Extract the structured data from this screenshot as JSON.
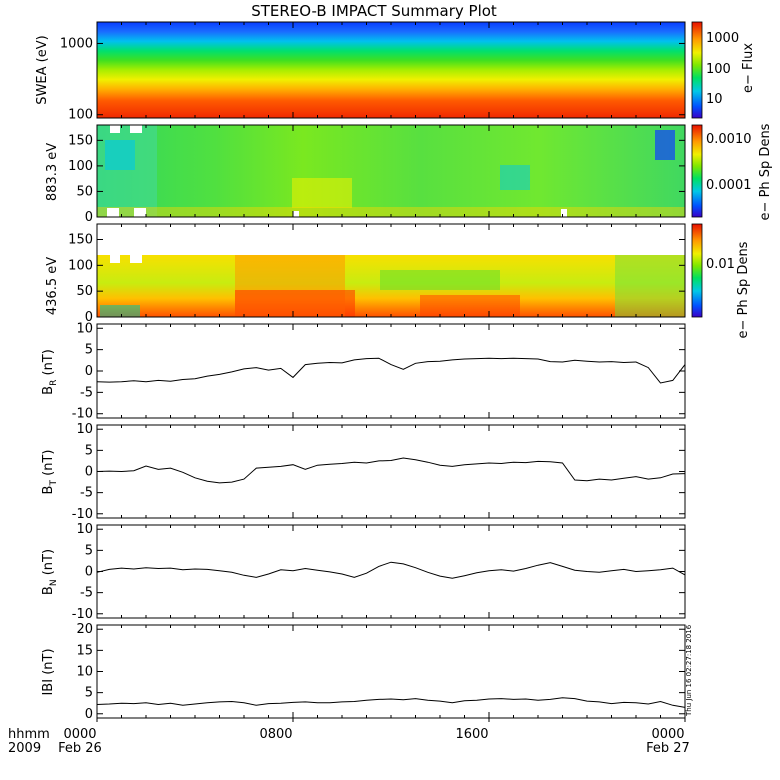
{
  "title": "STEREO-B IMPACT Summary Plot",
  "x_axis": {
    "ticks": [
      "0000",
      "0800",
      "1600",
      "0000"
    ],
    "tick_hours": [
      0,
      8,
      16,
      24
    ],
    "dates": [
      "Feb 26",
      "Feb 27"
    ],
    "corner_top": "hhmm",
    "corner_bottom": "2009"
  },
  "footer_stamp": "Thu Jun 16 02:27:18 2016",
  "chart_data": [
    {
      "type": "heatmap",
      "ylabel": "SWEA (eV)",
      "y_scale": "log",
      "ylim": [
        90,
        2000
      ],
      "yticks": [
        100,
        1000
      ],
      "yticklabels": [
        "100",
        "1000"
      ],
      "colorbar": {
        "label": "e− Flux",
        "ticklabels": [
          "1000",
          "100",
          "10"
        ]
      }
    },
    {
      "type": "heatmap",
      "ylabel": "883.3 eV",
      "ylim": [
        0,
        180
      ],
      "yticks": [
        0,
        50,
        100,
        150
      ],
      "colorbar": {
        "label": "e− Ph Sp Dens",
        "ticklabels": [
          "0.0010",
          "0.0001"
        ]
      }
    },
    {
      "type": "heatmap",
      "ylabel": "436.5 eV",
      "ylim": [
        0,
        180
      ],
      "yticks": [
        0,
        50,
        100,
        150
      ],
      "colorbar": {
        "label": "e− Ph Sp Dens",
        "ticklabels": [
          "0.01"
        ]
      }
    },
    {
      "type": "line",
      "ylabel_main": "B",
      "ylabel_sub": "R",
      "ylabel_unit": " (nT)",
      "ylim": [
        -11,
        11
      ],
      "yticks": [
        -10,
        -5,
        0,
        5,
        10
      ],
      "x_hours": [
        0,
        0.5,
        1,
        1.5,
        2,
        2.5,
        3,
        3.5,
        4,
        4.5,
        5,
        5.5,
        6,
        6.5,
        7,
        7.5,
        8,
        8.5,
        9,
        9.5,
        10,
        10.5,
        11,
        11.5,
        12,
        12.5,
        13,
        13.5,
        14,
        14.5,
        15,
        15.5,
        16,
        16.5,
        17,
        17.5,
        18,
        18.5,
        19,
        19.5,
        20,
        20.5,
        21,
        21.5,
        22,
        22.5,
        23,
        23.5,
        24
      ],
      "y": [
        -2.5,
        -2.6,
        -2.5,
        -2.3,
        -2.5,
        -2.2,
        -2.4,
        -2.0,
        -1.8,
        -1.2,
        -0.8,
        -0.2,
        0.5,
        0.8,
        0.2,
        0.6,
        -1.5,
        1.5,
        1.8,
        2.0,
        1.9,
        2.6,
        2.9,
        3.0,
        1.5,
        0.4,
        1.8,
        2.2,
        2.3,
        2.6,
        2.8,
        2.9,
        3.0,
        2.9,
        3.0,
        2.9,
        2.8,
        2.2,
        2.1,
        2.5,
        2.3,
        2.1,
        2.2,
        2.0,
        2.1,
        0.8,
        -2.8,
        -2.2,
        1.5
      ]
    },
    {
      "type": "line",
      "ylabel_main": "B",
      "ylabel_sub": "T",
      "ylabel_unit": " (nT)",
      "ylim": [
        -11,
        11
      ],
      "yticks": [
        -10,
        -5,
        0,
        5,
        10
      ],
      "x_hours": [
        0,
        0.5,
        1,
        1.5,
        2,
        2.5,
        3,
        3.5,
        4,
        4.5,
        5,
        5.5,
        6,
        6.5,
        7,
        7.5,
        8,
        8.5,
        9,
        9.5,
        10,
        10.5,
        11,
        11.5,
        12,
        12.5,
        13,
        13.5,
        14,
        14.5,
        15,
        15.5,
        16,
        16.5,
        17,
        17.5,
        18,
        18.5,
        19,
        19.5,
        20,
        20.5,
        21,
        21.5,
        22,
        22.5,
        23,
        23.5,
        24
      ],
      "y": [
        0,
        0.1,
        0,
        0.2,
        1.3,
        0.5,
        0.8,
        -0.2,
        -1.5,
        -2.3,
        -2.7,
        -2.5,
        -1.8,
        0.8,
        1.0,
        1.2,
        1.6,
        0.5,
        1.5,
        1.7,
        1.9,
        2.2,
        2.0,
        2.5,
        2.6,
        3.2,
        2.8,
        2.2,
        1.5,
        1.2,
        1.6,
        1.8,
        2.0,
        1.9,
        2.2,
        2.1,
        2.4,
        2.3,
        2.0,
        -2.0,
        -2.2,
        -1.8,
        -2.0,
        -1.6,
        -1.2,
        -1.8,
        -1.5,
        -0.6,
        -0.5
      ]
    },
    {
      "type": "line",
      "ylabel_main": "B",
      "ylabel_sub": "N",
      "ylabel_unit": " (nT)",
      "ylim": [
        -11,
        11
      ],
      "yticks": [
        -10,
        -5,
        0,
        5,
        10
      ],
      "x_hours": [
        0,
        0.5,
        1,
        1.5,
        2,
        2.5,
        3,
        3.5,
        4,
        4.5,
        5,
        5.5,
        6,
        6.5,
        7,
        7.5,
        8,
        8.5,
        9,
        9.5,
        10,
        10.5,
        11,
        11.5,
        12,
        12.5,
        13,
        13.5,
        14,
        14.5,
        15,
        15.5,
        16,
        16.5,
        17,
        17.5,
        18,
        18.5,
        19,
        19.5,
        20,
        20.5,
        21,
        21.5,
        22,
        22.5,
        23,
        23.5,
        24
      ],
      "y": [
        -0.2,
        0.5,
        0.8,
        0.6,
        0.9,
        0.7,
        0.8,
        0.4,
        0.6,
        0.5,
        0.2,
        -0.2,
        -0.9,
        -1.4,
        -0.6,
        0.4,
        0.2,
        0.7,
        0.3,
        -0.1,
        -0.6,
        -1.4,
        -0.4,
        1.2,
        2.2,
        1.8,
        0.9,
        -0.2,
        -1.1,
        -1.6,
        -1.0,
        -0.3,
        0.2,
        0.4,
        0.1,
        0.7,
        1.5,
        2.1,
        1.2,
        0.3,
        0.0,
        -0.2,
        0.2,
        0.5,
        0.0,
        0.2,
        0.4,
        0.8,
        -0.8
      ]
    },
    {
      "type": "line",
      "ylabel_main": "IBI",
      "ylabel_sub": "",
      "ylabel_unit": " (nT)",
      "ylim": [
        -1,
        21
      ],
      "yticks": [
        0,
        5,
        10,
        15,
        20
      ],
      "x_hours": [
        0,
        0.5,
        1,
        1.5,
        2,
        2.5,
        3,
        3.5,
        4,
        4.5,
        5,
        5.5,
        6,
        6.5,
        7,
        7.5,
        8,
        8.5,
        9,
        9.5,
        10,
        10.5,
        11,
        11.5,
        12,
        12.5,
        13,
        13.5,
        14,
        14.5,
        15,
        15.5,
        16,
        16.5,
        17,
        17.5,
        18,
        18.5,
        19,
        19.5,
        20,
        20.5,
        21,
        21.5,
        22,
        22.5,
        23,
        23.5,
        24
      ],
      "y": [
        2.2,
        2.3,
        2.5,
        2.4,
        2.6,
        2.2,
        2.5,
        2.0,
        2.3,
        2.6,
        2.8,
        2.9,
        2.6,
        2.0,
        2.4,
        2.5,
        2.7,
        2.8,
        2.6,
        2.6,
        2.8,
        2.9,
        3.2,
        3.4,
        3.5,
        3.3,
        3.6,
        3.2,
        3.0,
        2.6,
        3.1,
        3.2,
        3.5,
        3.6,
        3.4,
        3.5,
        3.2,
        3.4,
        3.8,
        3.6,
        3.0,
        2.8,
        2.4,
        2.7,
        2.6,
        2.3,
        2.9,
        2.0,
        1.5
      ]
    }
  ]
}
